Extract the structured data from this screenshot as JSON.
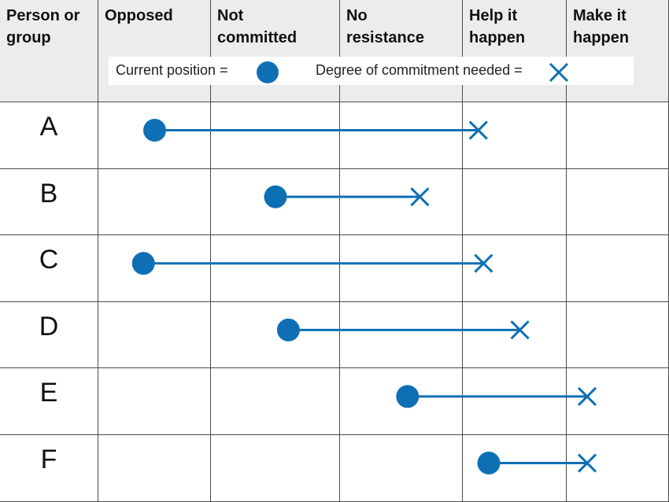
{
  "header": {
    "columns": [
      {
        "key": "person",
        "label": "Person or\ngroup"
      },
      {
        "key": "opposed",
        "label": "Opposed"
      },
      {
        "key": "not_committed",
        "label": "Not\ncommitted"
      },
      {
        "key": "no_resistance",
        "label": "No\nresistance"
      },
      {
        "key": "help",
        "label": "Help it\nhappen"
      },
      {
        "key": "make",
        "label": "Make it\nhappen"
      }
    ]
  },
  "legend": {
    "current_label": "Current position =",
    "needed_label": "Degree of commitment needed =",
    "current_icon": "filled-circle-icon",
    "needed_icon": "cross-icon"
  },
  "colors": {
    "marker": "#0f6fb4",
    "grid": "#4a4a4a",
    "header_bg": "#ececec"
  },
  "chart_data": {
    "type": "commitment-chart",
    "scale": [
      "Opposed",
      "Not committed",
      "No resistance",
      "Help it happen",
      "Make it happen"
    ],
    "rows": [
      {
        "name": "A",
        "current": 0.5,
        "needed": 3.15
      },
      {
        "name": "B",
        "current": 1.5,
        "needed": 2.65
      },
      {
        "name": "C",
        "current": 0.4,
        "needed": 3.2
      },
      {
        "name": "D",
        "current": 1.6,
        "needed": 3.55
      },
      {
        "name": "E",
        "current": 2.55,
        "needed": 4.2
      },
      {
        "name": "F",
        "current": 3.25,
        "needed": 4.2
      }
    ]
  }
}
